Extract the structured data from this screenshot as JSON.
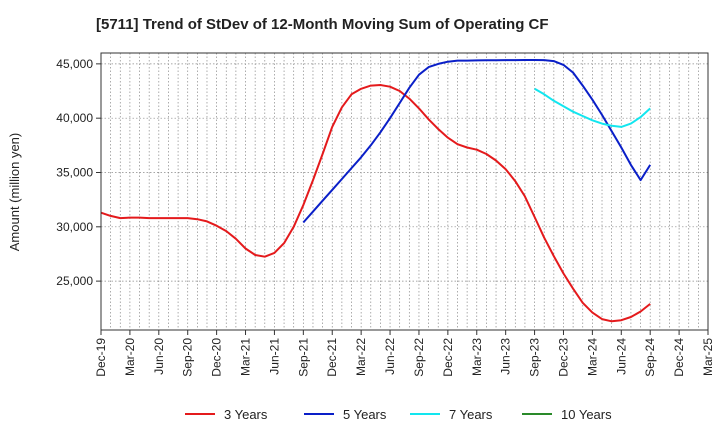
{
  "chart_data": {
    "type": "line",
    "title": "[5711]  Trend of StDev of 12-Month Moving Sum of Operating CF",
    "xlabel": "",
    "ylabel": "Amount (million yen)",
    "ylim": [
      20500,
      46000
    ],
    "y_ticks": [
      25000,
      30000,
      35000,
      40000,
      45000
    ],
    "y_tick_labels": [
      "25,000",
      "30,000",
      "35,000",
      "40,000",
      "45,000"
    ],
    "x_start": "Dec-19",
    "x_end": "Mar-25",
    "x_tick_labels": [
      "Dec-19",
      "Mar-20",
      "Jun-20",
      "Sep-20",
      "Dec-20",
      "Mar-21",
      "Jun-21",
      "Sep-21",
      "Dec-21",
      "Mar-22",
      "Jun-22",
      "Sep-22",
      "Dec-22",
      "Mar-23",
      "Jun-23",
      "Sep-23",
      "Dec-23",
      "Mar-24",
      "Jun-24",
      "Sep-24",
      "Dec-24",
      "Mar-25"
    ],
    "grid": true,
    "legend_position": "bottom",
    "series": [
      {
        "name": "3 Years",
        "color": "#e41a1c",
        "x": [
          "Dec-19",
          "Jan-20",
          "Feb-20",
          "Mar-20",
          "Apr-20",
          "May-20",
          "Jun-20",
          "Jul-20",
          "Aug-20",
          "Sep-20",
          "Oct-20",
          "Nov-20",
          "Dec-20",
          "Jan-21",
          "Feb-21",
          "Mar-21",
          "Apr-21",
          "May-21",
          "Jun-21",
          "Jul-21",
          "Aug-21",
          "Sep-21",
          "Oct-21",
          "Nov-21",
          "Dec-21",
          "Jan-22",
          "Feb-22",
          "Mar-22",
          "Apr-22",
          "May-22",
          "Jun-22",
          "Jul-22",
          "Aug-22",
          "Sep-22",
          "Oct-22",
          "Nov-22",
          "Dec-22",
          "Jan-23",
          "Feb-23",
          "Mar-23",
          "Apr-23",
          "May-23",
          "Jun-23",
          "Jul-23",
          "Aug-23",
          "Sep-23",
          "Oct-23",
          "Nov-23",
          "Dec-23",
          "Jan-24",
          "Feb-24",
          "Mar-24",
          "Apr-24",
          "May-24",
          "Jun-24",
          "Jul-24",
          "Aug-24",
          "Sep-24"
        ],
        "values": [
          31300,
          31000,
          30800,
          30850,
          30850,
          30800,
          30800,
          30800,
          30800,
          30800,
          30700,
          30500,
          30100,
          29600,
          28900,
          28000,
          27400,
          27250,
          27600,
          28500,
          30000,
          32000,
          34300,
          36700,
          39200,
          41000,
          42200,
          42700,
          43000,
          43050,
          42900,
          42500,
          41800,
          40900,
          39900,
          39000,
          38200,
          37600,
          37300,
          37100,
          36700,
          36100,
          35300,
          34200,
          32800,
          30900,
          29000,
          27300,
          25700,
          24300,
          23000,
          22100,
          21500,
          21300,
          21400,
          21700,
          22200,
          22900
        ]
      },
      {
        "name": "5 Years",
        "color": "#0a1fc8",
        "x": [
          "Sep-21",
          "Oct-21",
          "Nov-21",
          "Dec-21",
          "Jan-22",
          "Feb-22",
          "Mar-22",
          "Apr-22",
          "May-22",
          "Jun-22",
          "Jul-22",
          "Aug-22",
          "Sep-22",
          "Oct-22",
          "Nov-22",
          "Dec-22",
          "Jan-23",
          "Feb-23",
          "Mar-23",
          "Apr-23",
          "May-23",
          "Jun-23",
          "Jul-23",
          "Aug-23",
          "Sep-23",
          "Oct-23",
          "Nov-23",
          "Dec-23",
          "Jan-24",
          "Feb-24",
          "Mar-24",
          "Apr-24",
          "May-24",
          "Jun-24",
          "Jul-24",
          "Aug-24",
          "Sep-24"
        ],
        "values": [
          30400,
          31400,
          32400,
          33400,
          34400,
          35400,
          36400,
          37500,
          38700,
          40000,
          41400,
          42800,
          44000,
          44700,
          45000,
          45200,
          45300,
          45300,
          45320,
          45330,
          45340,
          45350,
          45350,
          45360,
          45360,
          45350,
          45250,
          44900,
          44200,
          43000,
          41700,
          40300,
          38800,
          37300,
          35700,
          34300,
          35700
        ]
      },
      {
        "name": "7 Years",
        "color": "#12e6ef",
        "x": [
          "Sep-23",
          "Oct-23",
          "Nov-23",
          "Dec-23",
          "Jan-24",
          "Feb-24",
          "Mar-24",
          "Apr-24",
          "May-24",
          "Jun-24",
          "Jul-24",
          "Aug-24",
          "Sep-24"
        ],
        "values": [
          42700,
          42200,
          41600,
          41100,
          40600,
          40200,
          39800,
          39500,
          39300,
          39200,
          39500,
          40100,
          40900
        ]
      },
      {
        "name": "10 Years",
        "color": "#2a8a2a",
        "x": [],
        "values": []
      }
    ]
  }
}
